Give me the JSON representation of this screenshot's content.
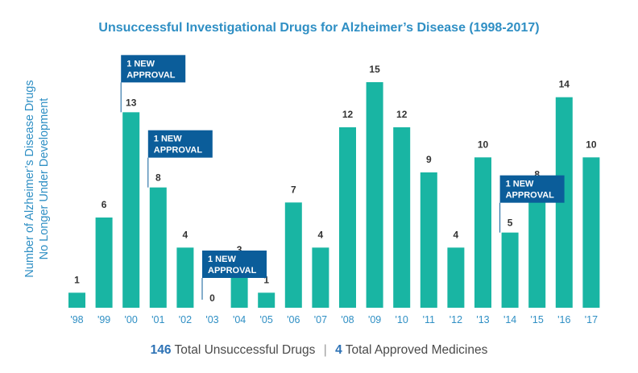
{
  "chart_data": {
    "type": "bar",
    "title": "Unsuccessful Investigational Drugs for Alzheimer’s Disease (1998-2017)",
    "ylabel_line1": "Number of Alzheimer’s Disease Drugs",
    "ylabel_line2": "No Longer Under Development",
    "xlabel": "",
    "categories": [
      "'98",
      "'99",
      "'00",
      "'01",
      "'02",
      "'03",
      "'04",
      "'05",
      "'06",
      "'07",
      "'08",
      "'09",
      "'10",
      "'11",
      "'12",
      "'13",
      "'14",
      "'15",
      "'16",
      "'17"
    ],
    "values": [
      1,
      6,
      13,
      8,
      4,
      0,
      3,
      1,
      7,
      4,
      12,
      15,
      12,
      9,
      4,
      10,
      5,
      8,
      14,
      10
    ],
    "ylim": [
      0,
      16
    ],
    "grid": false,
    "annotations": [
      {
        "category_index": 2,
        "line1": "1 NEW",
        "line2": "APPROVAL"
      },
      {
        "category_index": 3,
        "line1": "1 NEW",
        "line2": "APPROVAL"
      },
      {
        "category_index": 5,
        "line1": "1 NEW",
        "line2": "APPROVAL"
      },
      {
        "category_index": 16,
        "line1": "1 NEW",
        "line2": "APPROVAL"
      }
    ]
  },
  "footer": {
    "unsuccessful_count": "146",
    "unsuccessful_label": "Total Unsuccessful Drugs",
    "separator": "|",
    "approved_count": "4",
    "approved_label": "Total Approved Medicines"
  },
  "colors": {
    "bar": "#19b5a3",
    "annotation_box": "#0b5d9a",
    "title": "#2f8fc4",
    "tick": "#2f8fc4",
    "value_label": "#333333"
  }
}
